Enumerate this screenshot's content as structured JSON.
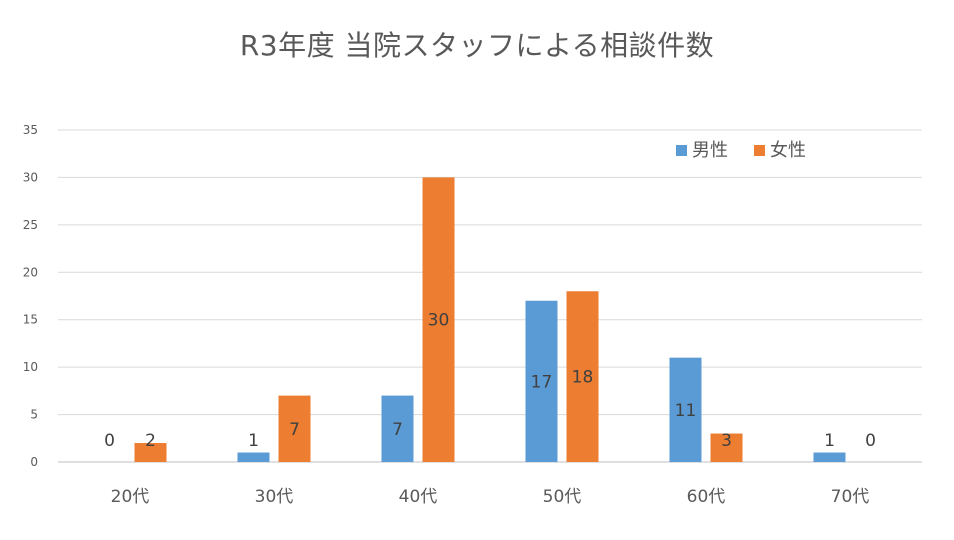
{
  "chart_data": {
    "type": "bar",
    "title": "R3年度 当院スタッフによる相談件数",
    "categories": [
      "20代",
      "30代",
      "40代",
      "50代",
      "60代",
      "70代"
    ],
    "series": [
      {
        "name": "男性",
        "color": "#5B9BD5",
        "values": [
          0,
          1,
          7,
          17,
          11,
          1
        ]
      },
      {
        "name": "女性",
        "color": "#ED7D31",
        "values": [
          2,
          7,
          30,
          18,
          3,
          0
        ]
      }
    ],
    "ylim": [
      0,
      35
    ],
    "yticks": [
      0,
      5,
      10,
      15,
      20,
      25,
      30,
      35
    ],
    "grid": true,
    "legend_position": "top-right",
    "xlabel": "",
    "ylabel": ""
  }
}
